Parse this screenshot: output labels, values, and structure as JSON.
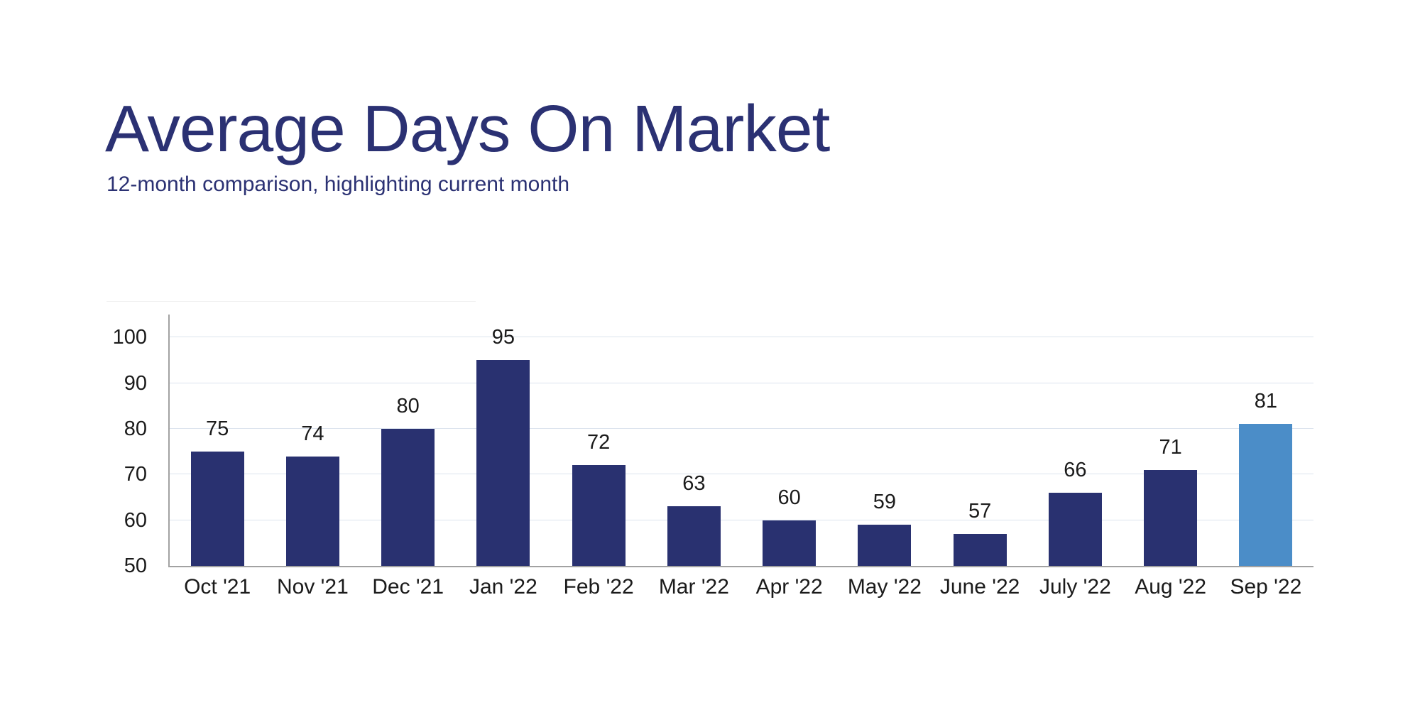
{
  "header": {
    "title": "Average Days On Market",
    "subtitle": "12-month comparison, highlighting current month"
  },
  "chart_data": {
    "type": "bar",
    "title": "Average Days On Market",
    "subtitle": "12-month comparison, highlighting current month",
    "categories": [
      "Oct '21",
      "Nov '21",
      "Dec '21",
      "Jan '22",
      "Feb '22",
      "Mar '22",
      "Apr '22",
      "May '22",
      "June '22",
      "July '22",
      "Aug '22",
      "Sep '22"
    ],
    "values": [
      75,
      74,
      80,
      95,
      72,
      63,
      60,
      59,
      57,
      66,
      71,
      81
    ],
    "highlight_index": 11,
    "highlight_meaning": "current month",
    "xlabel": "",
    "ylabel": "",
    "ylim": [
      50,
      105
    ],
    "yticks": [
      50,
      60,
      70,
      80,
      90,
      100
    ],
    "grid": true,
    "legend": "none",
    "bar_color": "#293170",
    "highlight_color": "#4b8dc8",
    "gridline_color": "#dce3ee",
    "axis_color": "#a2a2a2",
    "label_color": "#1b1b1b",
    "title_color": "#2b3173"
  }
}
